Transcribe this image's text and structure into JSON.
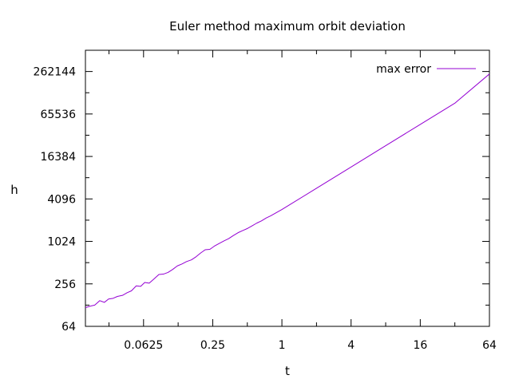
{
  "chart_data": {
    "type": "line",
    "title": "Euler method maximum orbit deviation",
    "xlabel": "t",
    "ylabel": "h",
    "x_scale": "log2",
    "y_scale": "log2",
    "xlim": [
      0.0195,
      64
    ],
    "ylim": [
      64,
      524288
    ],
    "x_ticks": [
      {
        "value": 0.0625,
        "label": "0.0625"
      },
      {
        "value": 0.25,
        "label": "0.25"
      },
      {
        "value": 1,
        "label": "1"
      },
      {
        "value": 4,
        "label": "4"
      },
      {
        "value": 16,
        "label": "16"
      },
      {
        "value": 64,
        "label": "64"
      }
    ],
    "y_ticks": [
      {
        "value": 64,
        "label": "64"
      },
      {
        "value": 256,
        "label": "256"
      },
      {
        "value": 1024,
        "label": "1024"
      },
      {
        "value": 4096,
        "label": "4096"
      },
      {
        "value": 16384,
        "label": "16384"
      },
      {
        "value": 65536,
        "label": "65536"
      },
      {
        "value": 262144,
        "label": "262144"
      }
    ],
    "grid": false,
    "legend_position": "top-right",
    "series": [
      {
        "name": "max error",
        "color": "#9400d3",
        "points": [
          [
            0.0195,
            118
          ],
          [
            0.0215,
            124
          ],
          [
            0.0235,
            128
          ],
          [
            0.026,
            148
          ],
          [
            0.0285,
            140
          ],
          [
            0.031,
            156
          ],
          [
            0.034,
            160
          ],
          [
            0.037,
            170
          ],
          [
            0.041,
            176
          ],
          [
            0.045,
            192
          ],
          [
            0.049,
            204
          ],
          [
            0.054,
            240
          ],
          [
            0.059,
            236
          ],
          [
            0.064,
            268
          ],
          [
            0.07,
            262
          ],
          [
            0.077,
            300
          ],
          [
            0.085,
            348
          ],
          [
            0.093,
            352
          ],
          [
            0.102,
            372
          ],
          [
            0.112,
            410
          ],
          [
            0.123,
            460
          ],
          [
            0.135,
            490
          ],
          [
            0.148,
            530
          ],
          [
            0.163,
            560
          ],
          [
            0.179,
            620
          ],
          [
            0.196,
            700
          ],
          [
            0.215,
            780
          ],
          [
            0.236,
            790
          ],
          [
            0.259,
            880
          ],
          [
            0.285,
            960
          ],
          [
            0.313,
            1040
          ],
          [
            0.344,
            1120
          ],
          [
            0.378,
            1240
          ],
          [
            0.415,
            1360
          ],
          [
            0.456,
            1460
          ],
          [
            0.501,
            1560
          ],
          [
            0.55,
            1700
          ],
          [
            0.604,
            1860
          ],
          [
            0.664,
            2000
          ],
          [
            0.73,
            2200
          ],
          [
            0.8,
            2360
          ],
          [
            0.88,
            2580
          ],
          [
            1,
            2900
          ],
          [
            2,
            5800
          ],
          [
            4,
            11600
          ],
          [
            8,
            23300
          ],
          [
            16,
            46600
          ],
          [
            32,
            93200
          ],
          [
            64,
            242000
          ]
        ]
      }
    ]
  }
}
